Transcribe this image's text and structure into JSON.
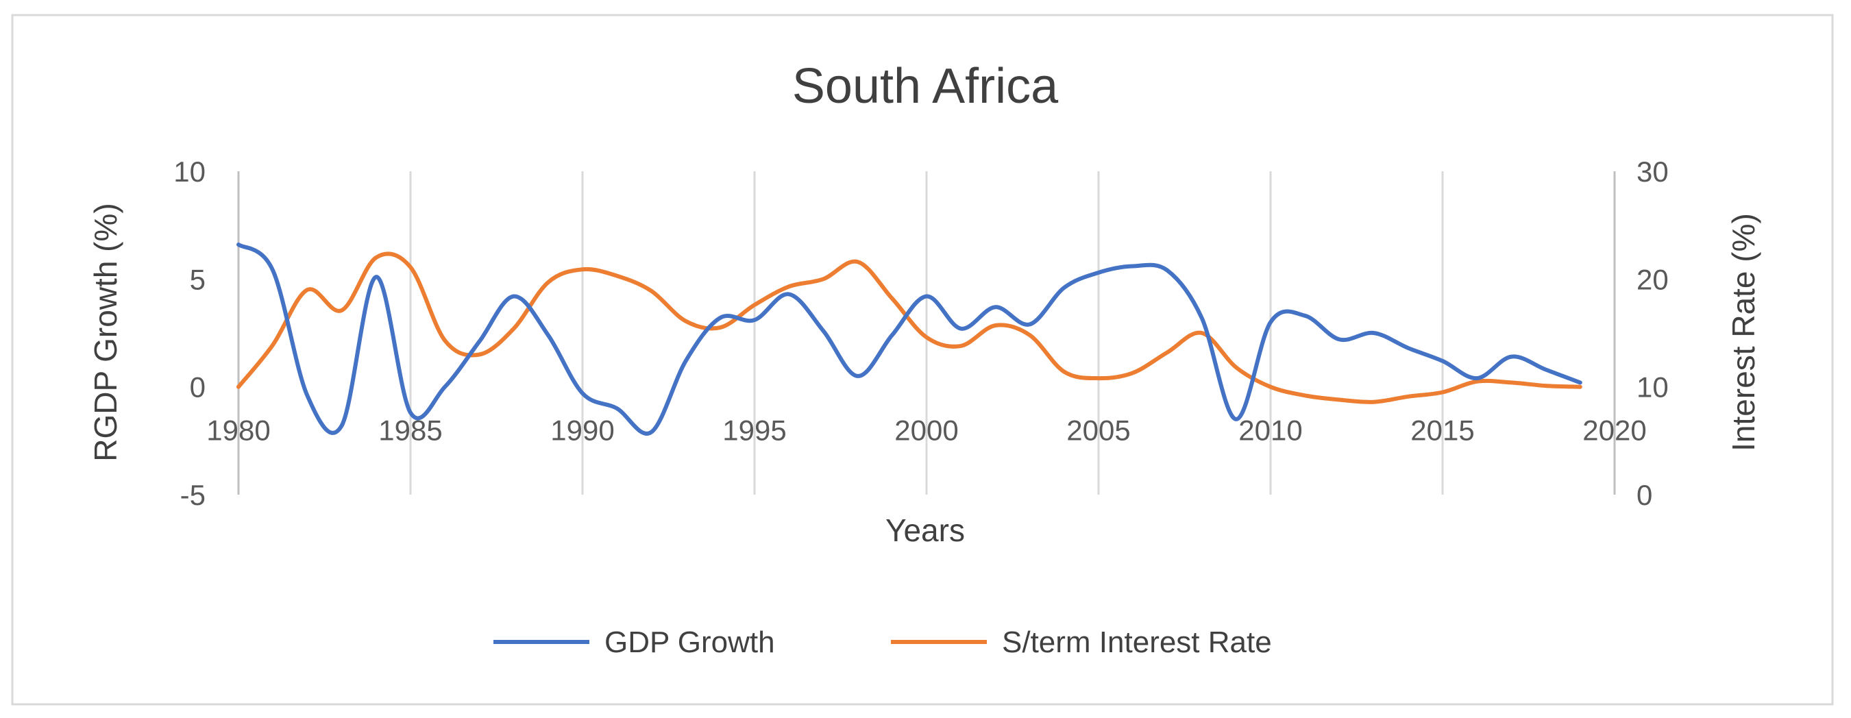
{
  "chart_data": {
    "type": "line",
    "title": "South Africa",
    "xlabel": "Years",
    "ylabel": "RGDP Growth (%)",
    "y2label": "Interest Rate (%)",
    "xlim": [
      1980,
      2020
    ],
    "ylim": [
      -5,
      10
    ],
    "y2lim": [
      0,
      30
    ],
    "x_ticks": [
      1980,
      1985,
      1990,
      1995,
      2000,
      2005,
      2010,
      2015,
      2020
    ],
    "y_ticks": [
      -5,
      0,
      5,
      10
    ],
    "y2_ticks": [
      0,
      10,
      20,
      30
    ],
    "grid": "vertical",
    "legend_position": "bottom",
    "x": [
      1980,
      1981,
      1982,
      1983,
      1984,
      1985,
      1986,
      1987,
      1988,
      1989,
      1990,
      1991,
      1992,
      1993,
      1994,
      1995,
      1996,
      1997,
      1998,
      1999,
      2000,
      2001,
      2002,
      2003,
      2004,
      2005,
      2006,
      2007,
      2008,
      2009,
      2010,
      2011,
      2012,
      2013,
      2014,
      2015,
      2016,
      2017,
      2018,
      2019
    ],
    "series": [
      {
        "name": "GDP Growth",
        "axis": "left",
        "color": "#4472C4",
        "values": [
          6.6,
          5.4,
          -0.4,
          -1.8,
          5.1,
          -1.2,
          0.0,
          2.1,
          4.2,
          2.4,
          -0.3,
          -1.0,
          -2.1,
          1.2,
          3.2,
          3.1,
          4.3,
          2.6,
          0.5,
          2.4,
          4.2,
          2.7,
          3.7,
          2.9,
          4.6,
          5.3,
          5.6,
          5.4,
          3.2,
          -1.5,
          3.0,
          3.3,
          2.2,
          2.5,
          1.8,
          1.2,
          0.4,
          1.4,
          0.8,
          0.2
        ]
      },
      {
        "name": "S/term Interest Rate",
        "axis": "right",
        "color": "#ED7D31",
        "values": [
          10.0,
          13.9,
          19.0,
          17.1,
          22.0,
          21.1,
          14.3,
          13.0,
          15.4,
          19.7,
          20.9,
          20.3,
          18.9,
          16.1,
          15.5,
          17.6,
          19.3,
          20.0,
          21.6,
          18.2,
          14.6,
          13.8,
          15.7,
          14.8,
          11.4,
          10.8,
          11.3,
          13.2,
          15.0,
          11.8,
          10.0,
          9.2,
          8.8,
          8.6,
          9.1,
          9.5,
          10.5,
          10.4,
          10.1,
          10.0
        ]
      }
    ]
  }
}
